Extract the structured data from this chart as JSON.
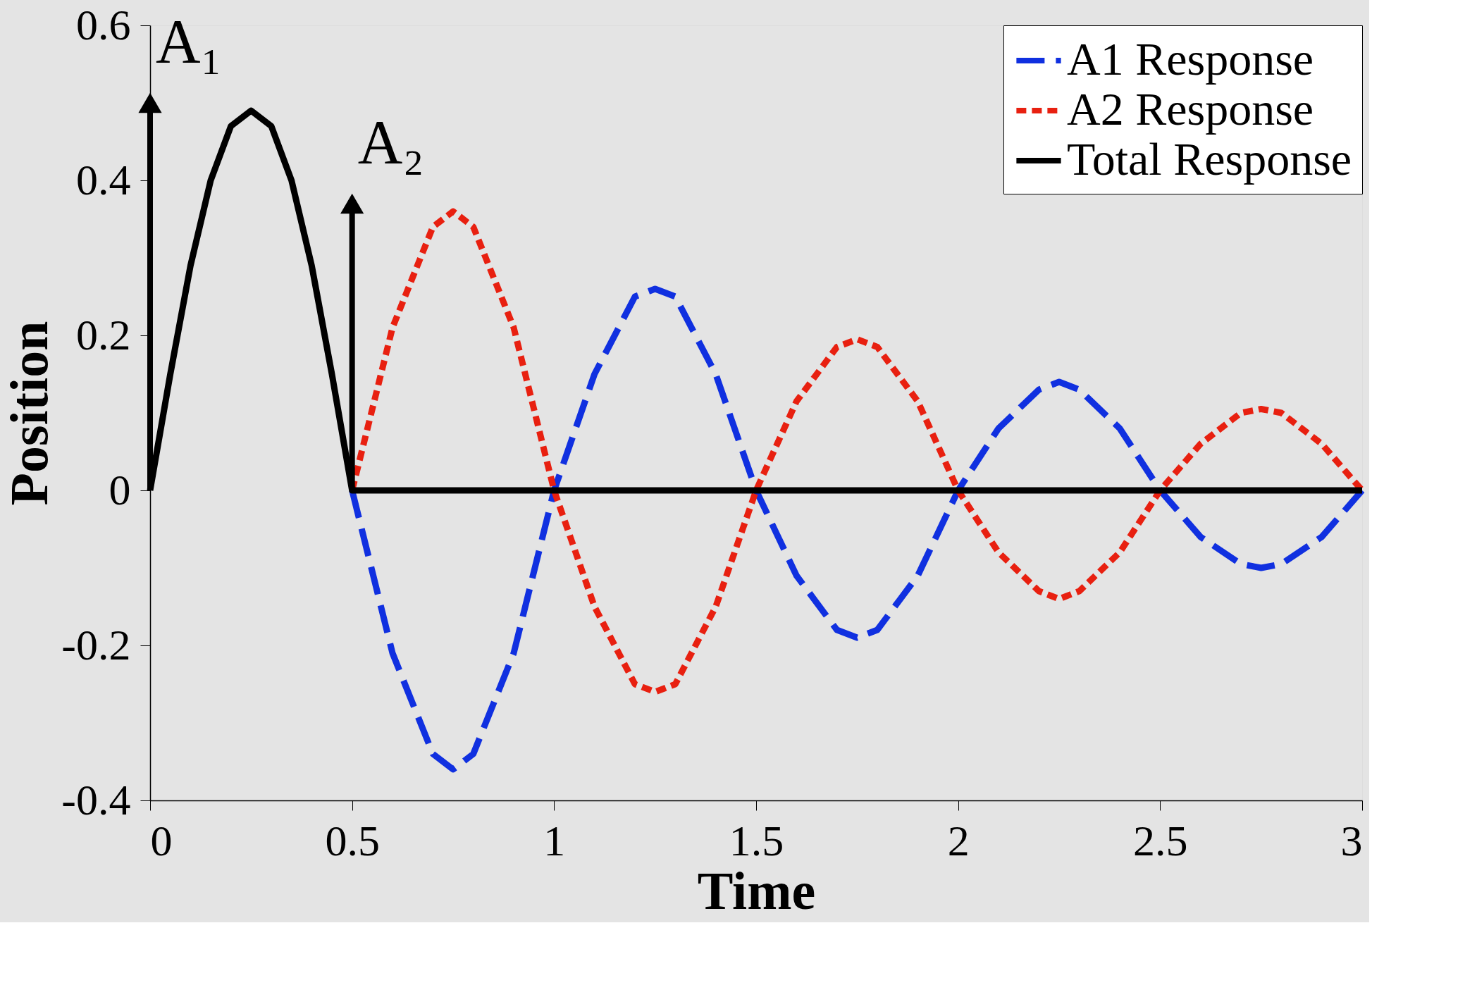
{
  "chart_data": {
    "type": "line",
    "xlabel": "Time",
    "ylabel": "Position",
    "xlim": [
      0,
      3
    ],
    "xticks": [
      0,
      0.5,
      1,
      1.5,
      2,
      2.5,
      3
    ],
    "ylim": [
      -0.4,
      0.6
    ],
    "yticks": [
      -0.4,
      -0.2,
      0,
      0.2,
      0.4,
      0.6
    ],
    "grid": false,
    "legend": "top right",
    "series": [
      {
        "name": "A1 Response",
        "color": "#1030e0",
        "line_style": "dashed",
        "x": [
          0.5,
          0.6,
          0.7,
          0.75,
          0.8,
          0.9,
          1.0,
          1.1,
          1.2,
          1.25,
          1.3,
          1.4,
          1.5,
          1.6,
          1.7,
          1.75,
          1.8,
          1.9,
          2.0,
          2.1,
          2.2,
          2.25,
          2.3,
          2.4,
          2.5,
          2.6,
          2.7,
          2.75,
          2.8,
          2.9,
          3.0
        ],
        "values": [
          0,
          -0.21,
          -0.34,
          -0.36,
          -0.34,
          -0.21,
          0,
          0.15,
          0.25,
          0.26,
          0.25,
          0.15,
          0,
          -0.11,
          -0.18,
          -0.19,
          -0.18,
          -0.11,
          0,
          0.08,
          0.13,
          0.14,
          0.13,
          0.08,
          0,
          -0.06,
          -0.095,
          -0.1,
          -0.095,
          -0.06,
          0
        ]
      },
      {
        "name": "A2 Response",
        "color": "#e82010",
        "line_style": "dotted",
        "x": [
          0.5,
          0.6,
          0.7,
          0.75,
          0.8,
          0.9,
          1.0,
          1.1,
          1.2,
          1.25,
          1.3,
          1.4,
          1.5,
          1.6,
          1.7,
          1.75,
          1.8,
          1.9,
          2.0,
          2.1,
          2.2,
          2.25,
          2.3,
          2.4,
          2.5,
          2.6,
          2.7,
          2.75,
          2.8,
          2.9,
          3.0
        ],
        "values": [
          0,
          0.21,
          0.34,
          0.36,
          0.34,
          0.21,
          0,
          -0.15,
          -0.25,
          -0.26,
          -0.25,
          -0.15,
          0,
          0.115,
          0.185,
          0.195,
          0.185,
          0.115,
          0,
          -0.08,
          -0.13,
          -0.14,
          -0.13,
          -0.08,
          0,
          0.06,
          0.1,
          0.105,
          0.1,
          0.06,
          0
        ]
      },
      {
        "name": "Total Response",
        "color": "#000000",
        "line_style": "solid",
        "x": [
          0,
          0.05,
          0.1,
          0.15,
          0.2,
          0.25,
          0.3,
          0.35,
          0.4,
          0.45,
          0.5,
          3.0
        ],
        "values": [
          0,
          0.15,
          0.29,
          0.4,
          0.47,
          0.49,
          0.47,
          0.4,
          0.29,
          0.15,
          0,
          0
        ]
      },
      {
        "type": "lollipop",
        "color": "#000000",
        "marker": "triangle",
        "x": [
          0,
          0.5
        ],
        "values": [
          0.5,
          0.37
        ]
      }
    ],
    "annotations": [
      "A₁",
      "A₂"
    ]
  }
}
